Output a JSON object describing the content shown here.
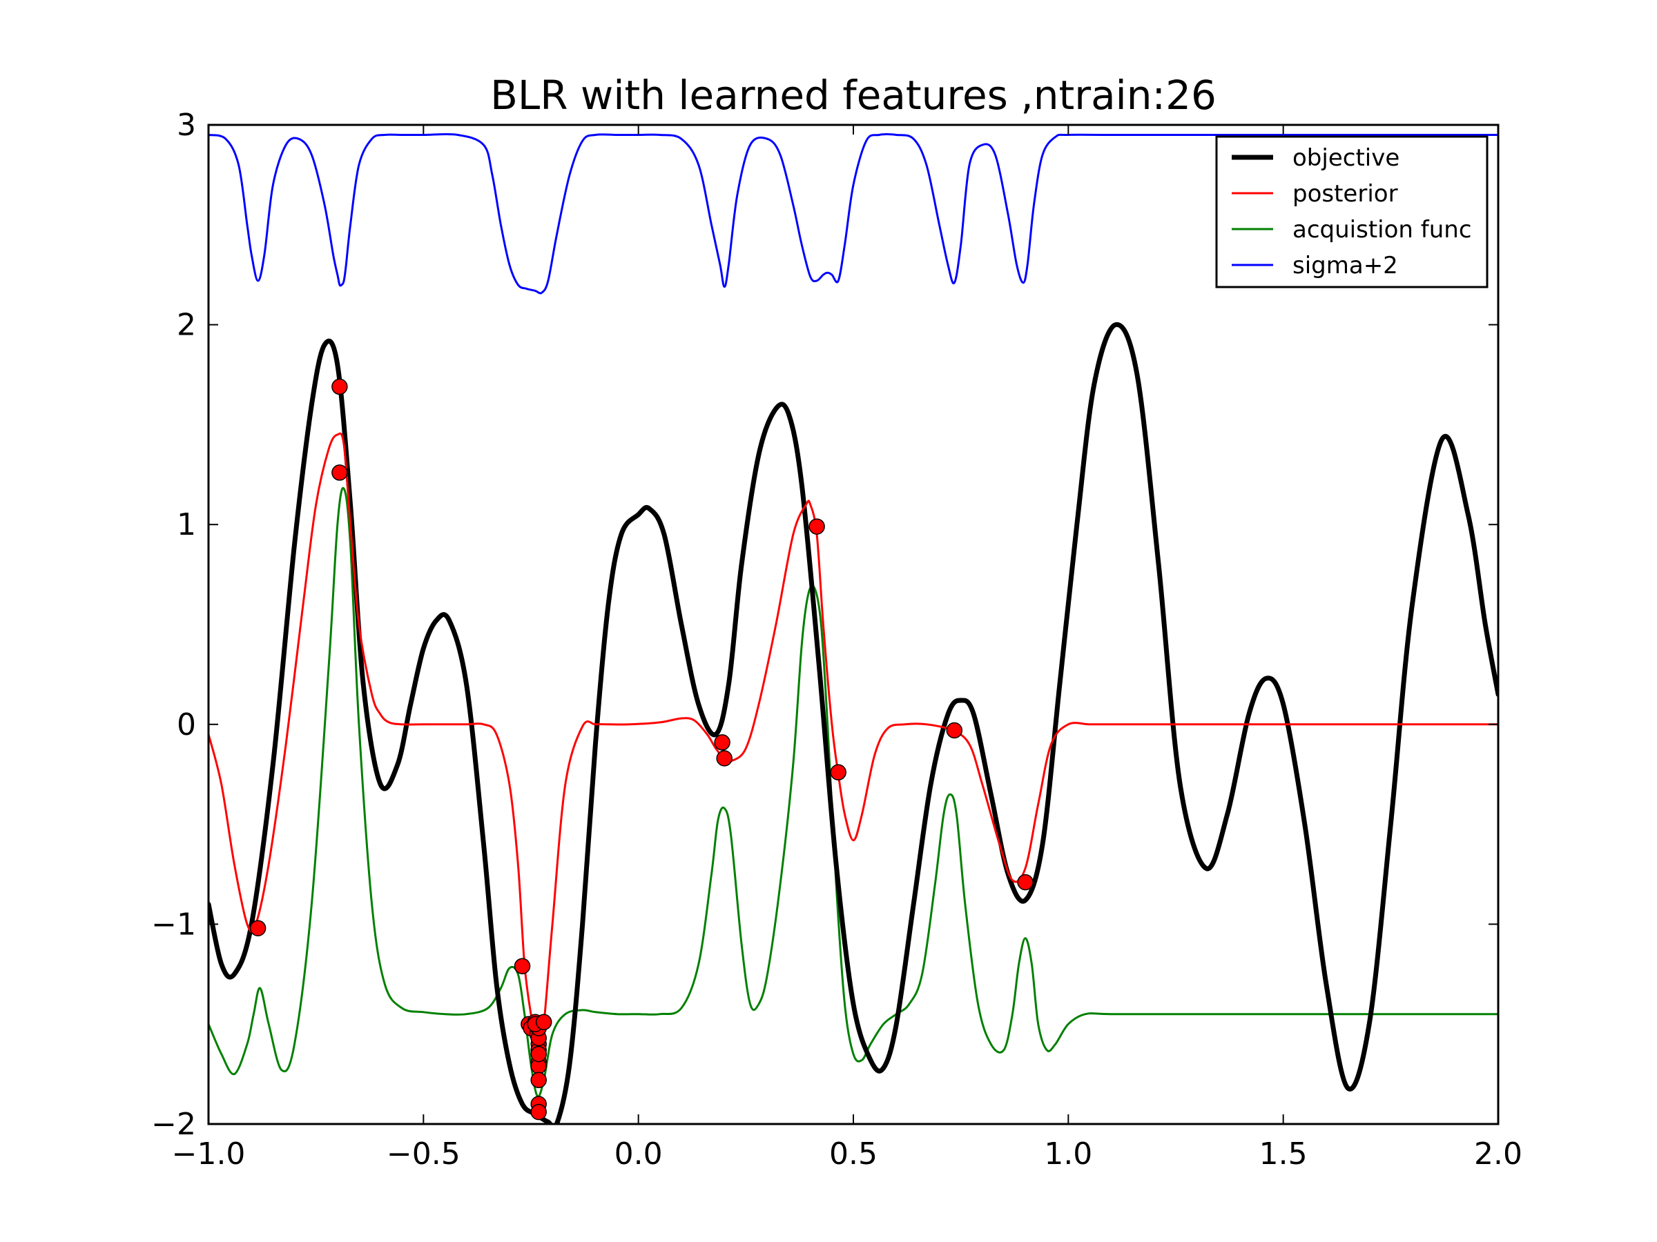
{
  "chart_data": {
    "type": "line",
    "title": "BLR with learned features ,ntrain:26",
    "xlabel": "",
    "ylabel": "",
    "xlim": [
      -1.0,
      2.0
    ],
    "ylim": [
      -2,
      3
    ],
    "x_ticks": [
      -1.0,
      -0.5,
      0.0,
      0.5,
      1.0,
      1.5,
      2.0
    ],
    "x_tick_labels": [
      "−1.0",
      "−0.5",
      "0.0",
      "0.5",
      "1.0",
      "1.5",
      "2.0"
    ],
    "y_ticks": [
      -2,
      -1,
      0,
      1,
      2,
      3
    ],
    "y_tick_labels": [
      "−2",
      "−1",
      "0",
      "1",
      "2",
      "3"
    ],
    "grid": false,
    "legend_position": "top-right",
    "series": [
      {
        "name": "objective",
        "color": "#000000",
        "x": [
          -1.0,
          -0.97,
          -0.94,
          -0.9,
          -0.85,
          -0.8,
          -0.76,
          -0.73,
          -0.7,
          -0.67,
          -0.64,
          -0.6,
          -0.56,
          -0.53,
          -0.5,
          -0.47,
          -0.44,
          -0.4,
          -0.36,
          -0.33,
          -0.3,
          -0.27,
          -0.24,
          -0.21,
          -0.19,
          -0.16,
          -0.13,
          -0.1,
          -0.07,
          -0.04,
          0.0,
          0.025,
          0.06,
          0.1,
          0.14,
          0.18,
          0.21,
          0.24,
          0.28,
          0.32,
          0.35,
          0.38,
          0.42,
          0.46,
          0.5,
          0.54,
          0.57,
          0.6,
          0.64,
          0.68,
          0.72,
          0.75,
          0.78,
          0.82,
          0.86,
          0.9,
          0.94,
          0.98,
          1.02,
          1.06,
          1.11,
          1.16,
          1.21,
          1.26,
          1.32,
          1.37,
          1.42,
          1.46,
          1.5,
          1.55,
          1.6,
          1.65,
          1.7,
          1.75,
          1.8,
          1.87,
          1.93,
          1.97,
          2.0
        ],
        "y": [
          -0.9,
          -1.2,
          -1.25,
          -1.0,
          -0.2,
          0.9,
          1.6,
          1.9,
          1.8,
          1.1,
          0.2,
          -0.3,
          -0.2,
          0.1,
          0.38,
          0.52,
          0.52,
          0.2,
          -0.6,
          -1.3,
          -1.7,
          -1.9,
          -1.95,
          -1.99,
          -2.0,
          -1.7,
          -1.0,
          -0.1,
          0.6,
          0.95,
          1.05,
          1.08,
          0.95,
          0.5,
          0.1,
          -0.05,
          0.2,
          0.8,
          1.35,
          1.58,
          1.55,
          1.2,
          0.3,
          -0.7,
          -1.4,
          -1.68,
          -1.72,
          -1.5,
          -0.9,
          -0.3,
          0.05,
          0.12,
          0.05,
          -0.35,
          -0.75,
          -0.88,
          -0.6,
          0.2,
          1.0,
          1.7,
          2.0,
          1.75,
          0.8,
          -0.3,
          -0.72,
          -0.45,
          0.05,
          0.23,
          0.1,
          -0.5,
          -1.3,
          -1.82,
          -1.5,
          -0.5,
          0.6,
          1.43,
          1.05,
          0.5,
          0.15
        ]
      },
      {
        "name": "posterior",
        "color": "#ff0000",
        "x": [
          -1.0,
          -0.97,
          -0.94,
          -0.91,
          -0.89,
          -0.86,
          -0.82,
          -0.78,
          -0.75,
          -0.72,
          -0.7,
          -0.685,
          -0.67,
          -0.65,
          -0.62,
          -0.6,
          -0.58,
          -0.55,
          -0.5,
          -0.45,
          -0.4,
          -0.36,
          -0.33,
          -0.3,
          -0.28,
          -0.265,
          -0.25,
          -0.24,
          -0.23,
          -0.22,
          -0.2,
          -0.17,
          -0.13,
          -0.1,
          -0.07,
          -0.02,
          0.05,
          0.1,
          0.13,
          0.16,
          0.18,
          0.2,
          0.22,
          0.25,
          0.28,
          0.32,
          0.36,
          0.39,
          0.4,
          0.415,
          0.43,
          0.45,
          0.465,
          0.48,
          0.5,
          0.52,
          0.55,
          0.58,
          0.62,
          0.67,
          0.73,
          0.77,
          0.8,
          0.84,
          0.87,
          0.9,
          0.93,
          0.96,
          1.0,
          1.05,
          1.1,
          1.3,
          1.5,
          1.7,
          2.0
        ],
        "y": [
          -0.05,
          -0.3,
          -0.7,
          -1.0,
          -1.0,
          -0.7,
          -0.1,
          0.6,
          1.1,
          1.38,
          1.45,
          1.4,
          1.0,
          0.5,
          0.15,
          0.05,
          0.01,
          0.0,
          0.0,
          0.0,
          0.0,
          0.0,
          -0.05,
          -0.3,
          -0.7,
          -1.2,
          -1.45,
          -1.55,
          -1.6,
          -1.5,
          -1.0,
          -0.3,
          -0.01,
          0.0,
          0.0,
          0.0,
          0.01,
          0.03,
          0.02,
          -0.05,
          -0.12,
          -0.17,
          -0.18,
          -0.12,
          0.1,
          0.5,
          0.95,
          1.1,
          1.1,
          0.95,
          0.5,
          0.0,
          -0.25,
          -0.45,
          -0.58,
          -0.45,
          -0.15,
          -0.02,
          0.0,
          0.0,
          -0.03,
          -0.1,
          -0.3,
          -0.6,
          -0.78,
          -0.72,
          -0.4,
          -0.1,
          0.0,
          0.0,
          0.0,
          0.0,
          0.0,
          0.0,
          0.0
        ]
      },
      {
        "name": "acquistion func",
        "color": "#008000",
        "x": [
          -1.0,
          -0.97,
          -0.94,
          -0.91,
          -0.895,
          -0.88,
          -0.86,
          -0.83,
          -0.8,
          -0.76,
          -0.72,
          -0.7,
          -0.685,
          -0.67,
          -0.65,
          -0.62,
          -0.59,
          -0.55,
          -0.5,
          -0.45,
          -0.4,
          -0.35,
          -0.32,
          -0.3,
          -0.28,
          -0.265,
          -0.25,
          -0.235,
          -0.22,
          -0.2,
          -0.17,
          -0.13,
          -0.1,
          -0.05,
          0.0,
          0.05,
          0.1,
          0.14,
          0.17,
          0.185,
          0.2,
          0.215,
          0.24,
          0.26,
          0.28,
          0.3,
          0.33,
          0.36,
          0.38,
          0.395,
          0.41,
          0.425,
          0.44,
          0.46,
          0.48,
          0.5,
          0.52,
          0.54,
          0.57,
          0.6,
          0.63,
          0.66,
          0.69,
          0.71,
          0.725,
          0.74,
          0.76,
          0.79,
          0.82,
          0.85,
          0.87,
          0.885,
          0.9,
          0.915,
          0.93,
          0.95,
          0.97,
          1.0,
          1.04,
          1.1,
          1.3,
          1.5,
          1.7,
          2.0
        ],
        "y": [
          -1.5,
          -1.65,
          -1.75,
          -1.6,
          -1.45,
          -1.32,
          -1.5,
          -1.73,
          -1.6,
          -0.9,
          0.3,
          1.0,
          1.18,
          0.9,
          0.0,
          -0.9,
          -1.3,
          -1.42,
          -1.44,
          -1.45,
          -1.45,
          -1.42,
          -1.32,
          -1.22,
          -1.25,
          -1.45,
          -1.7,
          -1.86,
          -1.78,
          -1.55,
          -1.45,
          -1.43,
          -1.44,
          -1.45,
          -1.45,
          -1.45,
          -1.42,
          -1.2,
          -0.75,
          -0.48,
          -0.42,
          -0.55,
          -1.1,
          -1.4,
          -1.4,
          -1.25,
          -0.8,
          -0.2,
          0.4,
          0.65,
          0.68,
          0.5,
          0.0,
          -0.8,
          -1.4,
          -1.65,
          -1.68,
          -1.6,
          -1.5,
          -1.45,
          -1.4,
          -1.25,
          -0.8,
          -0.45,
          -0.35,
          -0.45,
          -0.9,
          -1.4,
          -1.6,
          -1.63,
          -1.45,
          -1.2,
          -1.07,
          -1.2,
          -1.5,
          -1.63,
          -1.6,
          -1.5,
          -1.45,
          -1.45,
          -1.45,
          -1.45,
          -1.45,
          -1.45
        ]
      },
      {
        "name": "sigma+2",
        "color": "#0000ff",
        "x": [
          -1.0,
          -0.96,
          -0.93,
          -0.91,
          -0.9,
          -0.885,
          -0.87,
          -0.85,
          -0.82,
          -0.79,
          -0.76,
          -0.73,
          -0.71,
          -0.7,
          -0.695,
          -0.69,
          -0.685,
          -0.68,
          -0.67,
          -0.65,
          -0.62,
          -0.59,
          -0.55,
          -0.5,
          -0.42,
          -0.36,
          -0.34,
          -0.32,
          -0.3,
          -0.28,
          -0.26,
          -0.24,
          -0.225,
          -0.21,
          -0.19,
          -0.16,
          -0.13,
          -0.1,
          -0.05,
          0.0,
          0.05,
          0.1,
          0.14,
          0.17,
          0.19,
          0.2,
          0.21,
          0.23,
          0.26,
          0.3,
          0.33,
          0.36,
          0.38,
          0.4,
          0.415,
          0.43,
          0.44,
          0.45,
          0.465,
          0.48,
          0.5,
          0.53,
          0.56,
          0.6,
          0.64,
          0.67,
          0.7,
          0.72,
          0.735,
          0.75,
          0.77,
          0.8,
          0.83,
          0.86,
          0.88,
          0.895,
          0.905,
          0.92,
          0.94,
          0.97,
          1.0,
          1.1,
          1.3,
          1.5,
          1.7,
          2.0
        ],
        "y": [
          2.95,
          2.93,
          2.8,
          2.5,
          2.35,
          2.22,
          2.35,
          2.7,
          2.9,
          2.93,
          2.85,
          2.6,
          2.35,
          2.25,
          2.2,
          2.2,
          2.22,
          2.3,
          2.5,
          2.8,
          2.93,
          2.95,
          2.95,
          2.95,
          2.95,
          2.9,
          2.75,
          2.5,
          2.3,
          2.2,
          2.18,
          2.17,
          2.16,
          2.22,
          2.45,
          2.75,
          2.92,
          2.95,
          2.95,
          2.95,
          2.95,
          2.93,
          2.8,
          2.5,
          2.3,
          2.19,
          2.3,
          2.65,
          2.9,
          2.93,
          2.85,
          2.6,
          2.4,
          2.24,
          2.22,
          2.25,
          2.26,
          2.25,
          2.22,
          2.4,
          2.7,
          2.92,
          2.95,
          2.95,
          2.93,
          2.8,
          2.5,
          2.3,
          2.21,
          2.4,
          2.8,
          2.9,
          2.85,
          2.55,
          2.3,
          2.21,
          2.3,
          2.6,
          2.85,
          2.94,
          2.95,
          2.95,
          2.95,
          2.95,
          2.95,
          2.95
        ]
      }
    ],
    "training_points": {
      "color": "#ff0000",
      "x": [
        -0.885,
        -0.695,
        -0.695,
        -0.27,
        -0.255,
        -0.25,
        -0.24,
        -0.235,
        -0.232,
        -0.232,
        -0.232,
        -0.232,
        -0.232,
        -0.232,
        -0.232,
        -0.232,
        -0.232,
        -0.232,
        0.195,
        0.2,
        0.415,
        0.465,
        0.735,
        0.9,
        -0.24,
        -0.22
      ],
      "y": [
        -1.02,
        1.69,
        1.26,
        -1.21,
        -1.5,
        -1.52,
        -1.49,
        -1.55,
        -1.6,
        -1.63,
        -1.69,
        -1.71,
        -1.78,
        -1.9,
        -1.94,
        -1.57,
        -1.52,
        -1.65,
        -0.09,
        -0.17,
        0.99,
        -0.24,
        -0.03,
        -0.79,
        -1.5,
        -1.49
      ]
    }
  }
}
